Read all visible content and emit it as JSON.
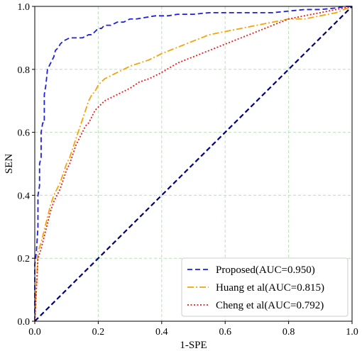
{
  "chart_data": {
    "type": "line",
    "xlabel": "1-SPE",
    "ylabel": "SEN",
    "xlim": [
      0,
      1
    ],
    "ylim": [
      0,
      1
    ],
    "x_ticks": [
      "0.0",
      "0.2",
      "0.4",
      "0.6",
      "0.8",
      "1.0"
    ],
    "y_ticks": [
      "0.0",
      "0.2",
      "0.4",
      "0.6",
      "0.8",
      "1.0"
    ],
    "grid": true,
    "legend_position": "bottom-right",
    "series": [
      {
        "name": "Proposed(AUC=0.950)",
        "color": "#1f1fe0",
        "dash": "dashed",
        "x": [
          0.0,
          0.0,
          0.005,
          0.01,
          0.01,
          0.015,
          0.015,
          0.02,
          0.02,
          0.025,
          0.03,
          0.03,
          0.035,
          0.04,
          0.045,
          0.05,
          0.06,
          0.065,
          0.075,
          0.08,
          0.09,
          0.1,
          0.11,
          0.13,
          0.15,
          0.17,
          0.18,
          0.19,
          0.2,
          0.21,
          0.22,
          0.24,
          0.26,
          0.28,
          0.3,
          0.32,
          0.35,
          0.38,
          0.42,
          0.45,
          0.5,
          0.55,
          0.6,
          0.65,
          0.7,
          0.75,
          0.8,
          0.85,
          0.9,
          0.95,
          0.98,
          1.0
        ],
        "y": [
          0.0,
          0.18,
          0.22,
          0.3,
          0.4,
          0.43,
          0.5,
          0.52,
          0.6,
          0.63,
          0.63,
          0.72,
          0.75,
          0.8,
          0.81,
          0.82,
          0.84,
          0.86,
          0.87,
          0.88,
          0.89,
          0.895,
          0.9,
          0.9,
          0.9,
          0.91,
          0.91,
          0.92,
          0.93,
          0.93,
          0.94,
          0.94,
          0.95,
          0.95,
          0.96,
          0.96,
          0.965,
          0.97,
          0.97,
          0.975,
          0.975,
          0.98,
          0.98,
          0.98,
          0.98,
          0.98,
          0.985,
          0.99,
          0.99,
          0.995,
          1.0,
          1.0
        ]
      },
      {
        "name": "Huang et al(AUC=0.815)",
        "color": "#f5a40a",
        "dash": "dashdot",
        "x": [
          0.0,
          0.01,
          0.02,
          0.03,
          0.04,
          0.05,
          0.06,
          0.07,
          0.08,
          0.09,
          0.1,
          0.11,
          0.12,
          0.13,
          0.14,
          0.15,
          0.16,
          0.17,
          0.18,
          0.19,
          0.2,
          0.22,
          0.24,
          0.26,
          0.28,
          0.3,
          0.33,
          0.36,
          0.4,
          0.45,
          0.5,
          0.55,
          0.6,
          0.65,
          0.7,
          0.75,
          0.8,
          0.85,
          0.9,
          0.95,
          1.0
        ],
        "y": [
          0.0,
          0.22,
          0.25,
          0.29,
          0.33,
          0.37,
          0.4,
          0.42,
          0.44,
          0.47,
          0.5,
          0.52,
          0.55,
          0.58,
          0.61,
          0.64,
          0.67,
          0.7,
          0.72,
          0.73,
          0.75,
          0.77,
          0.78,
          0.79,
          0.8,
          0.81,
          0.82,
          0.83,
          0.85,
          0.87,
          0.89,
          0.91,
          0.92,
          0.93,
          0.94,
          0.95,
          0.96,
          0.96,
          0.97,
          0.98,
          1.0
        ]
      },
      {
        "name": "Cheng et al(AUC=0.792)",
        "color": "#e81c1c",
        "dash": "dotted",
        "x": [
          0.0,
          0.01,
          0.02,
          0.03,
          0.04,
          0.05,
          0.06,
          0.07,
          0.08,
          0.09,
          0.1,
          0.11,
          0.12,
          0.13,
          0.14,
          0.15,
          0.16,
          0.17,
          0.18,
          0.19,
          0.2,
          0.22,
          0.24,
          0.26,
          0.28,
          0.3,
          0.33,
          0.36,
          0.4,
          0.45,
          0.5,
          0.55,
          0.6,
          0.65,
          0.7,
          0.75,
          0.8,
          0.85,
          0.9,
          0.95,
          1.0
        ],
        "y": [
          0.0,
          0.2,
          0.23,
          0.27,
          0.31,
          0.35,
          0.38,
          0.4,
          0.42,
          0.45,
          0.48,
          0.5,
          0.53,
          0.56,
          0.58,
          0.6,
          0.62,
          0.63,
          0.65,
          0.67,
          0.68,
          0.7,
          0.71,
          0.72,
          0.73,
          0.74,
          0.76,
          0.77,
          0.79,
          0.82,
          0.84,
          0.86,
          0.88,
          0.9,
          0.92,
          0.94,
          0.96,
          0.97,
          0.98,
          0.99,
          1.0
        ]
      }
    ],
    "reference_line": {
      "color": "#000080",
      "dash": "dashed",
      "x": [
        0,
        1
      ],
      "y": [
        0,
        1
      ]
    }
  }
}
